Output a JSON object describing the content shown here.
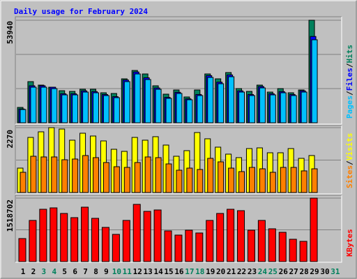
{
  "chart_data": [
    {
      "type": "bar",
      "title": "Daily usage for February 2024",
      "title_color": "#0000ff",
      "categories": [
        "1",
        "2",
        "3",
        "4",
        "5",
        "6",
        "7",
        "8",
        "9",
        "10",
        "11",
        "12",
        "13",
        "14",
        "15",
        "16",
        "17",
        "18",
        "19",
        "20",
        "21",
        "22",
        "23",
        "24",
        "25",
        "26",
        "27",
        "28",
        "29",
        "30",
        "31"
      ],
      "legend_separator": "/",
      "series": [
        {
          "name": "Hits",
          "color": "#00805c",
          "values": [
            8072,
            21647,
            19813,
            18712,
            16877,
            16510,
            17611,
            17611,
            15777,
            15410,
            23115,
            27518,
            25683,
            19446,
            15043,
            17244,
            13575,
            17244,
            25683,
            23115,
            26417,
            17978,
            16510,
            19813,
            16144,
            17978,
            15777,
            17244,
            53940,
            null,
            null
          ]
        },
        {
          "name": "Files",
          "color": "#0000ff",
          "values": [
            7250,
            19460,
            19460,
            18697,
            15263,
            15263,
            16790,
            16408,
            14881,
            13736,
            22513,
            26710,
            23658,
            18315,
            13356,
            16026,
            12592,
            14881,
            24803,
            21368,
            25184,
            16790,
            14881,
            19079,
            15263,
            16408,
            14881,
            16790,
            45407,
            null,
            null
          ]
        },
        {
          "name": "Pages",
          "color": "#00c0ff",
          "values": [
            6971,
            18712,
            18712,
            17978,
            14676,
            14676,
            16144,
            15777,
            14309,
            13208,
            21647,
            25683,
            22748,
            17611,
            12842,
            15410,
            12108,
            14309,
            23849,
            20546,
            24215,
            16144,
            14309,
            18345,
            14676,
            15777,
            14309,
            16144,
            43661,
            null,
            null
          ]
        }
      ],
      "ylim": [
        0,
        53940
      ],
      "yticks": [
        53940
      ]
    },
    {
      "type": "bar",
      "legend_separator": "/",
      "series": [
        {
          "name": "Visits",
          "color": "#ffff00",
          "values": [
            854,
            1928,
            2124,
            2270,
            2221,
            1831,
            2075,
            1977,
            1806,
            1513,
            1440,
            1928,
            1831,
            1953,
            1660,
            1269,
            1465,
            2099,
            1880,
            1587,
            1343,
            1221,
            1538,
            1562,
            1391,
            1391,
            1538,
            1196,
            1294,
            null,
            null
          ]
        },
        {
          "name": "Sites",
          "color": "#ff8000",
          "values": [
            708,
            1269,
            1245,
            1245,
            1147,
            1172,
            1294,
            1221,
            1050,
            903,
            879,
            1050,
            1245,
            1221,
            1001,
            781,
            854,
            806,
            1196,
            1074,
            854,
            732,
            879,
            830,
            708,
            879,
            879,
            757,
            830,
            null,
            null
          ]
        }
      ],
      "ylim": [
        0,
        2270
      ],
      "yticks": [
        2270
      ]
    },
    {
      "type": "bar",
      "series": [
        {
          "name": "KBytes",
          "color": "#ff0000",
          "values": [
            550737,
            984651,
            1251675,
            1285053,
            1151541,
            1051407,
            1301742,
            1034718,
            817761,
            650871,
            984651,
            1368498,
            1201608,
            1234986,
            734316,
            634182,
            751005,
            684249,
            984651,
            1151541,
            1251675,
            1218297,
            751005,
            984651,
            784383,
            700938,
            534048,
            483981,
            1518702,
            null,
            null
          ]
        }
      ],
      "ylim": [
        0,
        1518702
      ],
      "yticks": [
        1518702
      ],
      "category_colors": [
        "#000000",
        "#000000",
        "#00805c",
        "#00805c",
        "#000000",
        "#000000",
        "#000000",
        "#000000",
        "#000000",
        "#00805c",
        "#00805c",
        "#000000",
        "#000000",
        "#000000",
        "#000000",
        "#000000",
        "#00805c",
        "#00805c",
        "#000000",
        "#000000",
        "#000000",
        "#000000",
        "#000000",
        "#00805c",
        "#00805c",
        "#000000",
        "#000000",
        "#000000",
        "#000000",
        "#000000",
        "#00805c"
      ]
    }
  ]
}
